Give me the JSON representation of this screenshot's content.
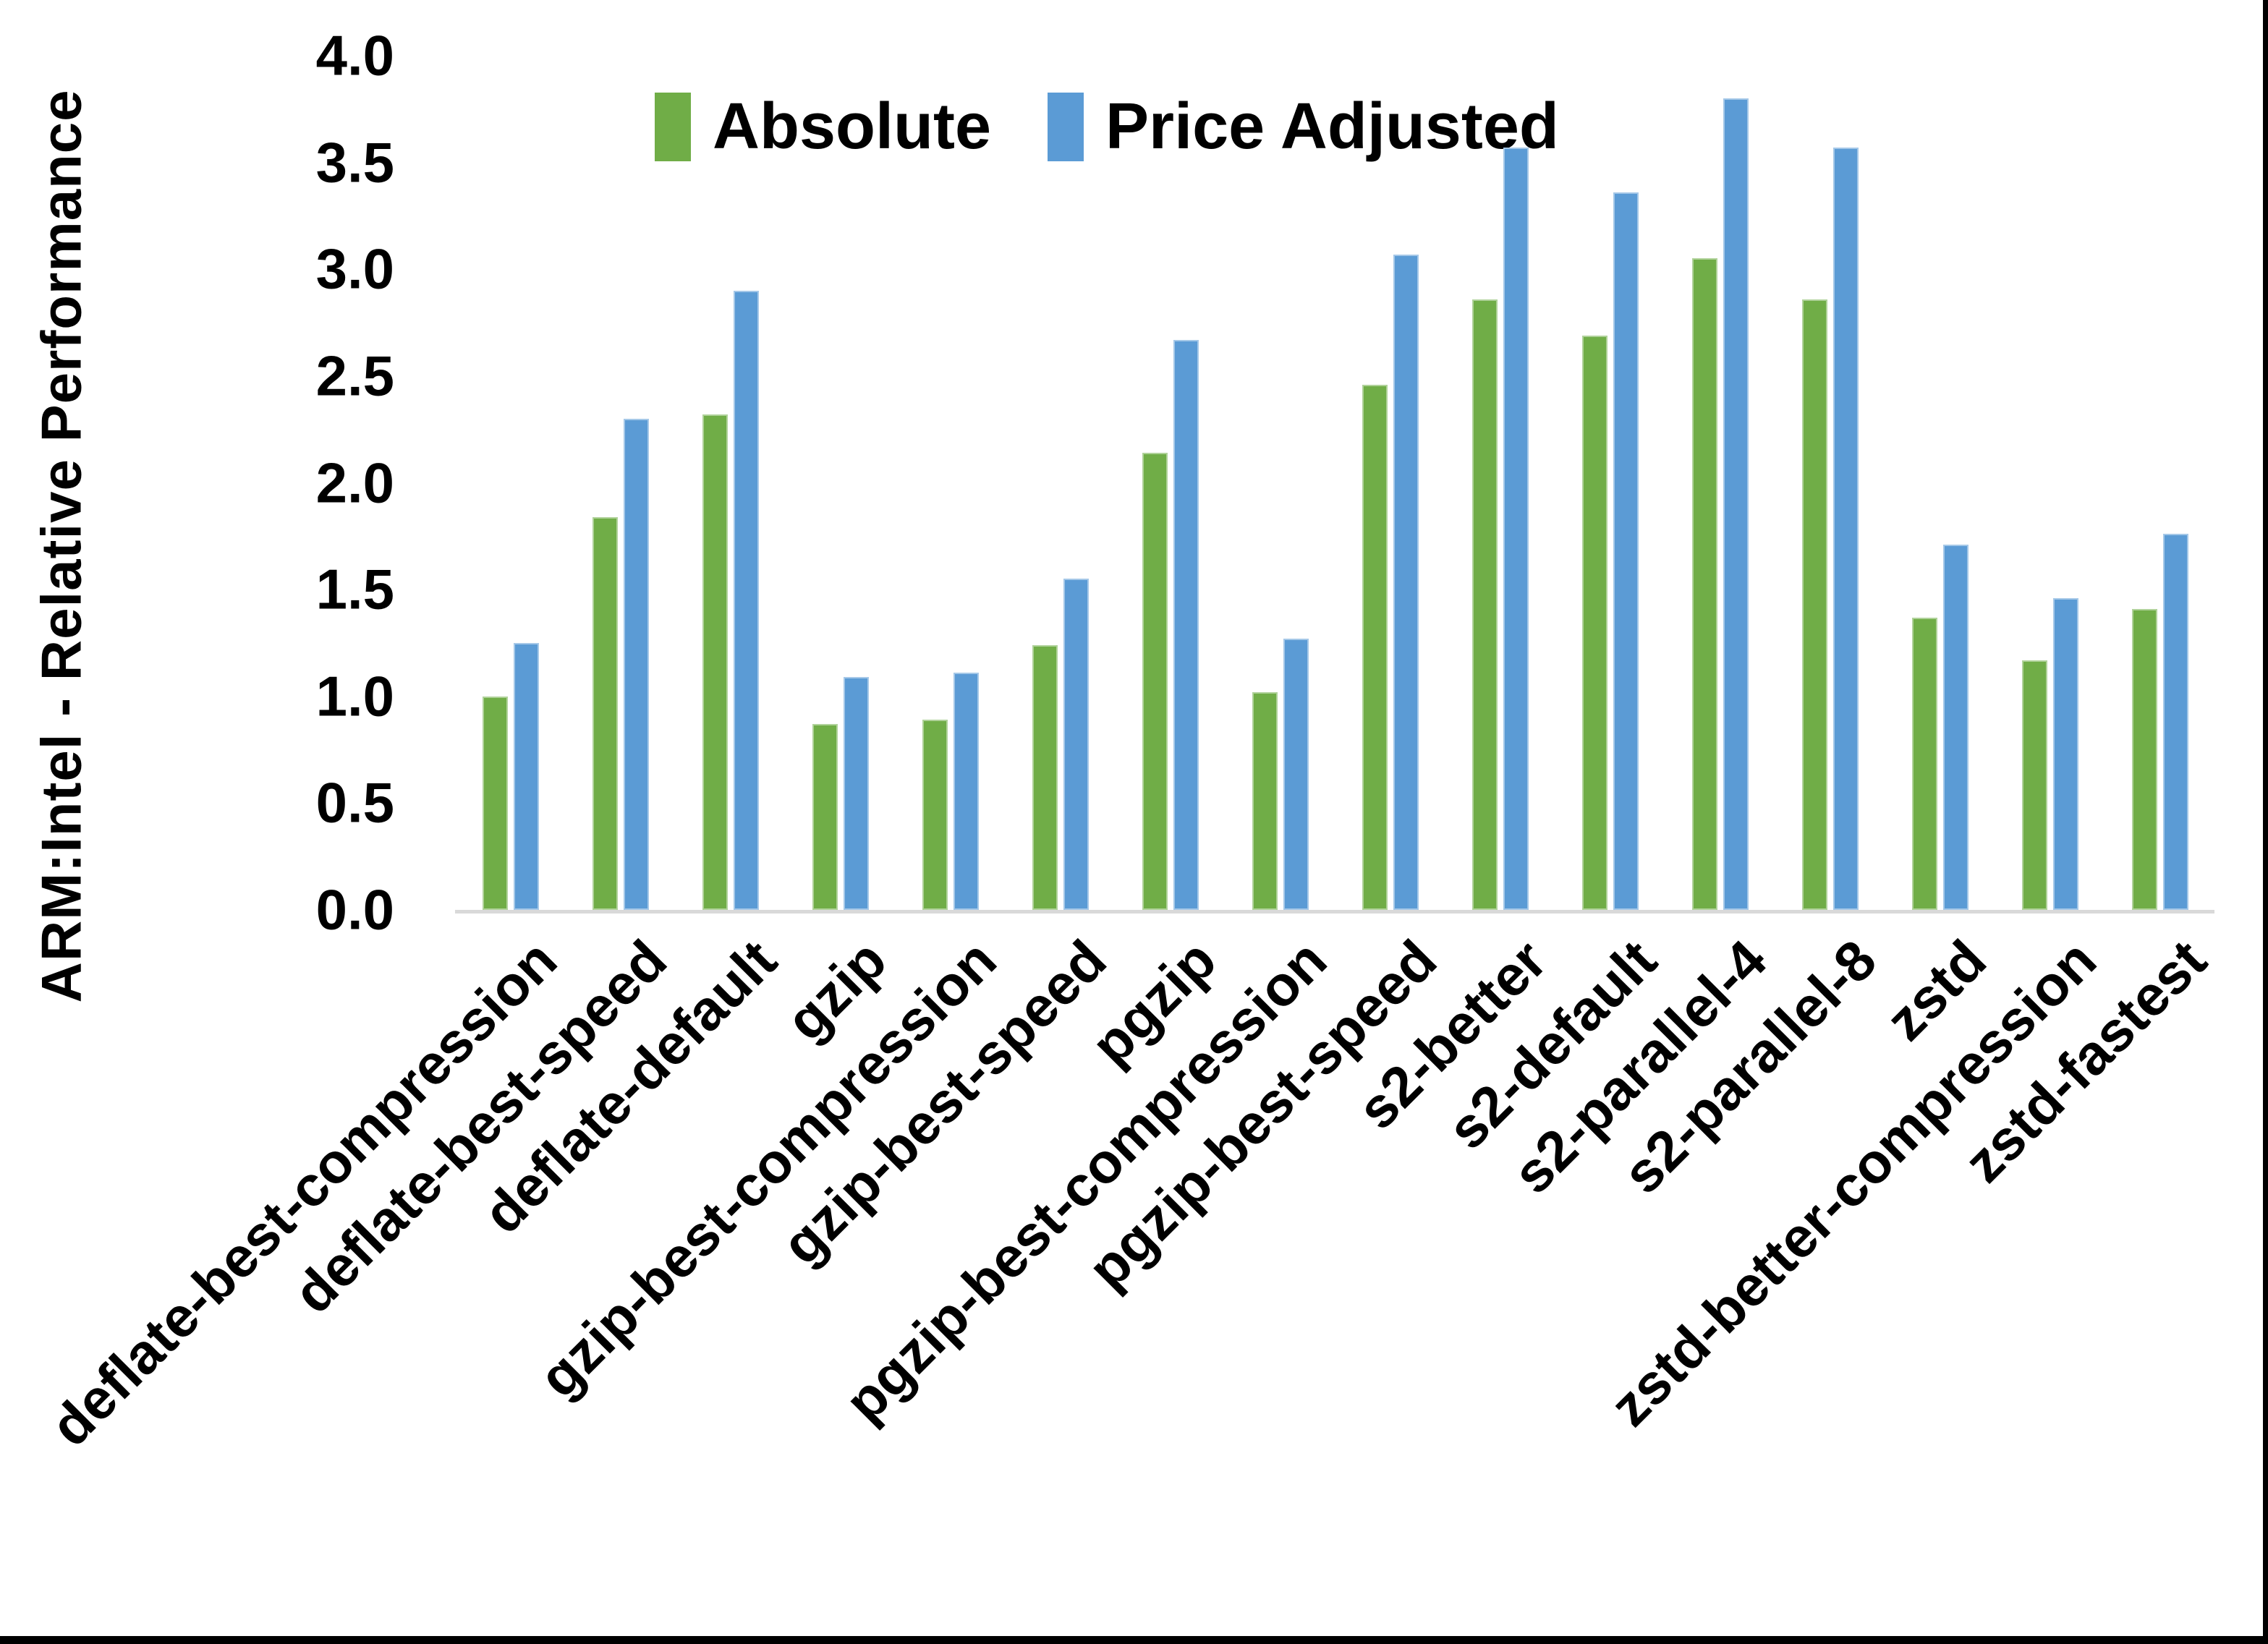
{
  "chart_data": {
    "type": "bar",
    "title": "",
    "xlabel": "",
    "ylabel": "ARM:Intel - Relative Performance",
    "ylim": [
      0.0,
      4.0
    ],
    "ytick_step": 0.5,
    "yticks": [
      "0.0",
      "0.5",
      "1.0",
      "1.5",
      "2.0",
      "2.5",
      "3.0",
      "3.5",
      "4.0"
    ],
    "grid": false,
    "legend_position": "top",
    "categories": [
      "deflate-best-compression",
      "deflate-best-speed",
      "deflate-default",
      "gzip",
      "gzip-best-compression",
      "gzip-best-speed",
      "pgzip",
      "pgzip-best-compression",
      "pgzip-best-speed",
      "s2-better",
      "s2-default",
      "s2-parallel-4",
      "s2-parallel-8",
      "zstd",
      "zstd-better-compression",
      "zstd-fastest"
    ],
    "series": [
      {
        "name": "Absolute",
        "color": "#70AD47",
        "values": [
          1.0,
          1.84,
          2.32,
          0.87,
          0.89,
          1.24,
          2.14,
          1.02,
          2.46,
          2.86,
          2.69,
          3.05,
          2.86,
          1.37,
          1.17,
          1.41
        ]
      },
      {
        "name": "Price Adjusted",
        "color": "#5B9BD5",
        "values": [
          1.25,
          2.3,
          2.9,
          1.09,
          1.11,
          1.55,
          2.67,
          1.27,
          3.07,
          3.57,
          3.36,
          3.8,
          3.57,
          1.71,
          1.46,
          1.76
        ]
      }
    ],
    "colors": {
      "axis_line": "#D9D9D9",
      "text": "#000000",
      "background": "#FFFFFF",
      "border_strip": "#000000"
    }
  },
  "legend": {
    "items": [
      {
        "label": "Absolute",
        "color": "#70AD47"
      },
      {
        "label": "Price Adjusted",
        "color": "#5B9BD5"
      }
    ]
  }
}
